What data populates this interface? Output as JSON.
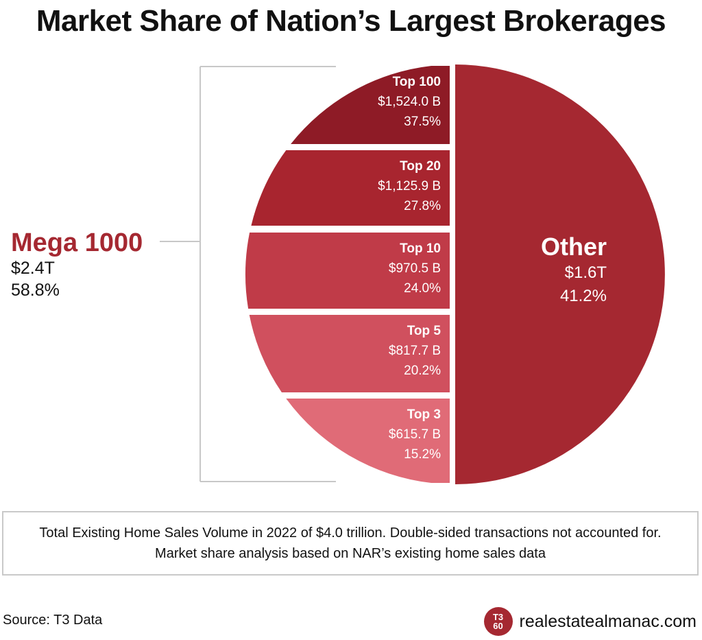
{
  "title": "Market Share of Nation’s Largest Brokerages",
  "colors": {
    "other": "#a52831",
    "top100": "#8e1b26",
    "top20": "#a8252f",
    "top10": "#c03b48",
    "top5": "#d0505e",
    "top3": "#e06b77",
    "bracket": "#c7c7c7",
    "accent": "#a52831"
  },
  "mega": {
    "name": "Mega 1000",
    "value": "$2.4T",
    "pct": "58.8%"
  },
  "chart_data": {
    "type": "pie",
    "title": "Market Share of Nation’s Largest Brokerages",
    "unit": "share of total volume",
    "slices": [
      {
        "name": "Other",
        "value_label": "$1.6T",
        "pct_label": "41.2%",
        "share": 41.2
      },
      {
        "name": "Top 100",
        "value_label": "$1,524.0 B",
        "pct_label": "37.5%",
        "share": 37.5
      },
      {
        "name": "Top 20",
        "value_label": "$1,125.9 B",
        "pct_label": "27.8%",
        "share": 27.8
      },
      {
        "name": "Top 10",
        "value_label": "$970.5 B",
        "pct_label": "24.0%",
        "share": 24.0
      },
      {
        "name": "Top 5",
        "value_label": "$817.7 B",
        "pct_label": "20.2%",
        "share": 20.2
      },
      {
        "name": "Top 3",
        "value_label": "$615.7 B",
        "pct_label": "15.2%",
        "share": 15.2
      }
    ]
  },
  "note": {
    "line1": "Total Existing Home Sales Volume in 2022 of $4.0 trillion. Double-sided transactions not accounted for.",
    "line2": "Market share analysis based on NAR’s existing home sales data"
  },
  "source": "Source: T3 Data",
  "brand": {
    "badge_top": "T3",
    "badge_bottom": "60",
    "badge_mark": "®",
    "site": "realestatealmanac.com"
  }
}
